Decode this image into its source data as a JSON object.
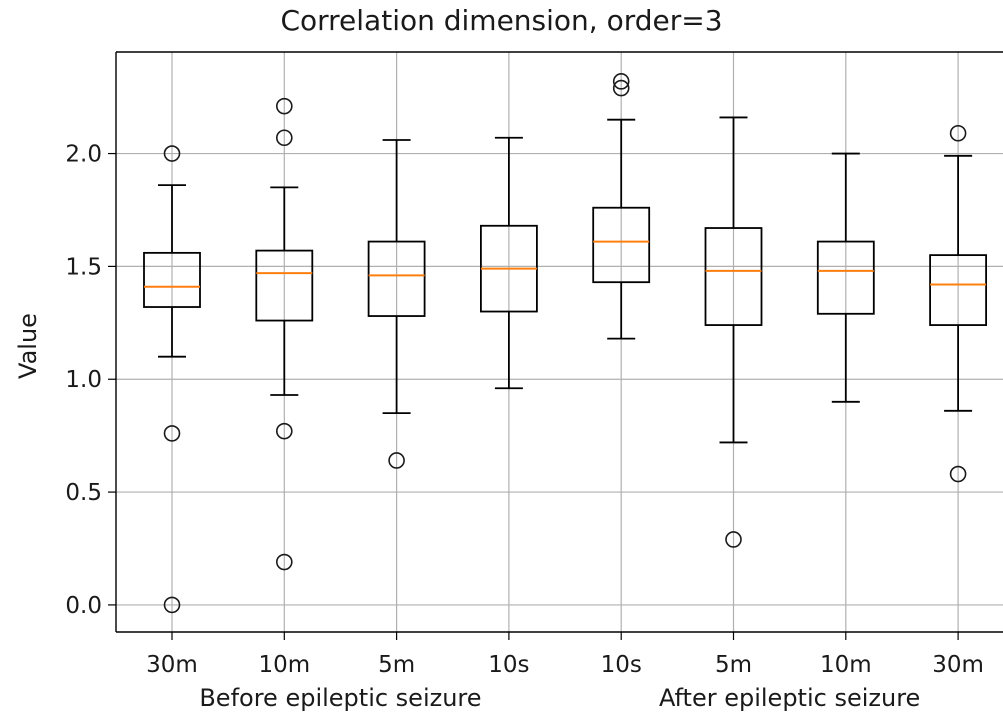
{
  "chart_data": {
    "type": "box",
    "title": "Correlation dimension, order=3",
    "ylabel": "Value",
    "xlabel": "",
    "group_labels": [
      "Before epileptic seizure",
      "After epileptic seizure"
    ],
    "categories": [
      "30m",
      "10m",
      "5m",
      "10s",
      "10s",
      "5m",
      "10m",
      "30m"
    ],
    "yticks": [
      0.0,
      0.5,
      1.0,
      1.5,
      2.0
    ],
    "ytick_labels": [
      "0.0",
      "0.5",
      "1.0",
      "1.5",
      "2.0"
    ],
    "ylim": [
      -0.12,
      2.45
    ],
    "grid": true,
    "colors": {
      "box": "#000000",
      "median": "#ff7f0e",
      "grid": "#b0b0b0",
      "text": "#1a1a1a"
    },
    "boxes": [
      {
        "label": "30m",
        "whisker_low": 1.1,
        "q1": 1.32,
        "median": 1.41,
        "q3": 1.56,
        "whisker_high": 1.86,
        "outliers": [
          2.0,
          0.76,
          0.0
        ]
      },
      {
        "label": "10m",
        "whisker_low": 0.93,
        "q1": 1.26,
        "median": 1.47,
        "q3": 1.57,
        "whisker_high": 1.85,
        "outliers": [
          2.21,
          2.07,
          0.77,
          0.19
        ]
      },
      {
        "label": "5m",
        "whisker_low": 0.85,
        "q1": 1.28,
        "median": 1.46,
        "q3": 1.61,
        "whisker_high": 2.06,
        "outliers": [
          0.64
        ]
      },
      {
        "label": "10s",
        "whisker_low": 0.96,
        "q1": 1.3,
        "median": 1.49,
        "q3": 1.68,
        "whisker_high": 2.07,
        "outliers": []
      },
      {
        "label": "10s",
        "whisker_low": 1.18,
        "q1": 1.43,
        "median": 1.61,
        "q3": 1.76,
        "whisker_high": 2.15,
        "outliers": [
          2.32,
          2.29
        ]
      },
      {
        "label": "5m",
        "whisker_low": 0.72,
        "q1": 1.24,
        "median": 1.48,
        "q3": 1.67,
        "whisker_high": 2.16,
        "outliers": [
          0.29
        ]
      },
      {
        "label": "10m",
        "whisker_low": 0.9,
        "q1": 1.29,
        "median": 1.48,
        "q3": 1.61,
        "whisker_high": 2.0,
        "outliers": []
      },
      {
        "label": "30m",
        "whisker_low": 0.86,
        "q1": 1.24,
        "median": 1.42,
        "q3": 1.55,
        "whisker_high": 1.99,
        "outliers": [
          2.09,
          0.58
        ]
      }
    ]
  }
}
